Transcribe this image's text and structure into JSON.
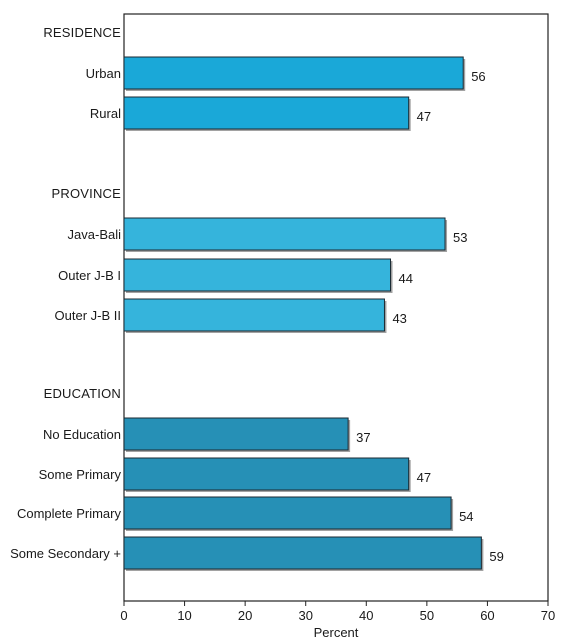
{
  "chart_data": {
    "type": "bar",
    "orientation": "horizontal",
    "xlabel": "Percent",
    "xlim": [
      0,
      70
    ],
    "xticks": [
      "0",
      "10",
      "20",
      "30",
      "40",
      "50",
      "60",
      "70"
    ],
    "grid": false,
    "groups": [
      {
        "label": "RESIDENCE",
        "color": "#1aa8d8",
        "bars": [
          {
            "category": "Urban",
            "value": 56
          },
          {
            "category": "Rural",
            "value": 47
          }
        ]
      },
      {
        "label": "PROVINCE",
        "color": "#35b4dc",
        "bars": [
          {
            "category": "Java-Bali",
            "value": 53
          },
          {
            "category": "Outer J-B I",
            "value": 44
          },
          {
            "category": "Outer J-B II",
            "value": 43
          }
        ]
      },
      {
        "label": "EDUCATION",
        "color": "#2690b6",
        "bars": [
          {
            "category": "No Education",
            "value": 37
          },
          {
            "category": "Some Primary",
            "value": 47
          },
          {
            "category": "Complete Primary",
            "value": 54
          },
          {
            "category": "Some Secondary +",
            "value": 59
          }
        ]
      }
    ]
  }
}
